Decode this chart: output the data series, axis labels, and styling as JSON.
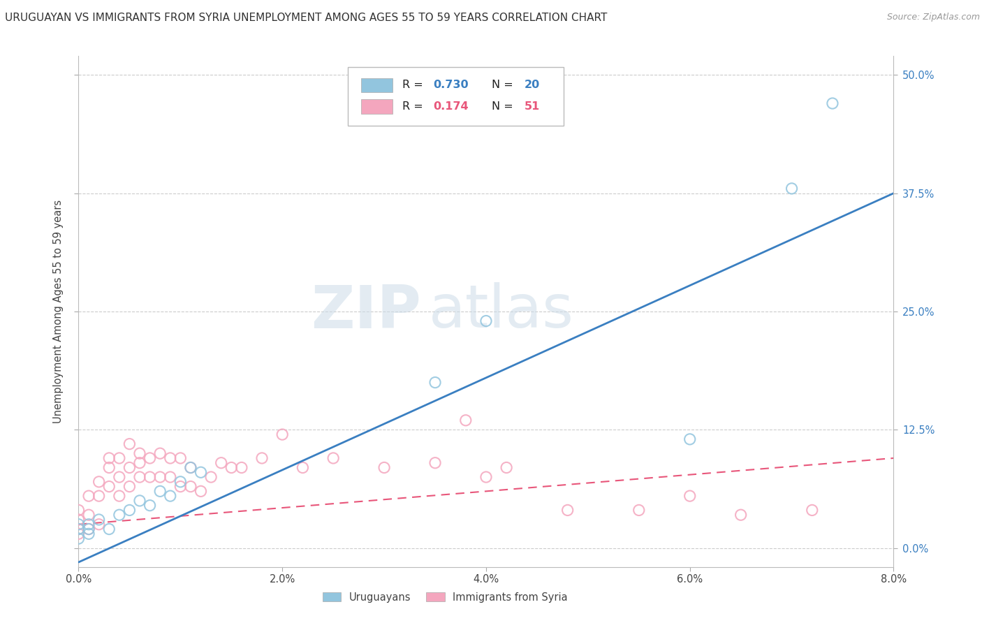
{
  "title": "URUGUAYAN VS IMMIGRANTS FROM SYRIA UNEMPLOYMENT AMONG AGES 55 TO 59 YEARS CORRELATION CHART",
  "source": "Source: ZipAtlas.com",
  "ylabel": "Unemployment Among Ages 55 to 59 years",
  "xlim": [
    0.0,
    0.08
  ],
  "ylim": [
    -0.02,
    0.52
  ],
  "ylim_display": [
    0.0,
    0.5
  ],
  "xticks": [
    0.0,
    0.02,
    0.04,
    0.06,
    0.08
  ],
  "xtick_labels": [
    "0.0%",
    "2.0%",
    "4.0%",
    "6.0%",
    "8.0%"
  ],
  "yticks_right": [
    0.0,
    0.125,
    0.25,
    0.375,
    0.5
  ],
  "ytick_labels_right": [
    "0.0%",
    "12.5%",
    "25.0%",
    "37.5%",
    "50.0%"
  ],
  "blue_color": "#92c5de",
  "pink_color": "#f4a6be",
  "blue_line_color": "#3a7fc1",
  "pink_line_color": "#e8567a",
  "watermark_zip": "ZIP",
  "watermark_atlas": "atlas",
  "blue_scatter_x": [
    0.0,
    0.0,
    0.0,
    0.001,
    0.001,
    0.001,
    0.002,
    0.003,
    0.004,
    0.005,
    0.006,
    0.007,
    0.008,
    0.009,
    0.01,
    0.011,
    0.012,
    0.035,
    0.04,
    0.06,
    0.07,
    0.074
  ],
  "blue_scatter_y": [
    0.01,
    0.02,
    0.025,
    0.015,
    0.02,
    0.025,
    0.03,
    0.02,
    0.035,
    0.04,
    0.05,
    0.045,
    0.06,
    0.055,
    0.07,
    0.085,
    0.08,
    0.175,
    0.24,
    0.115,
    0.38,
    0.47
  ],
  "pink_scatter_x": [
    0.0,
    0.0,
    0.0,
    0.0,
    0.001,
    0.001,
    0.001,
    0.002,
    0.002,
    0.002,
    0.003,
    0.003,
    0.003,
    0.004,
    0.004,
    0.004,
    0.005,
    0.005,
    0.005,
    0.006,
    0.006,
    0.006,
    0.007,
    0.007,
    0.008,
    0.008,
    0.009,
    0.009,
    0.01,
    0.01,
    0.011,
    0.011,
    0.012,
    0.013,
    0.014,
    0.015,
    0.016,
    0.018,
    0.02,
    0.022,
    0.025,
    0.03,
    0.035,
    0.038,
    0.04,
    0.042,
    0.048,
    0.055,
    0.06,
    0.065,
    0.072
  ],
  "pink_scatter_y": [
    0.015,
    0.02,
    0.03,
    0.04,
    0.02,
    0.035,
    0.055,
    0.025,
    0.055,
    0.07,
    0.065,
    0.085,
    0.095,
    0.055,
    0.075,
    0.095,
    0.065,
    0.085,
    0.11,
    0.075,
    0.09,
    0.1,
    0.075,
    0.095,
    0.075,
    0.1,
    0.075,
    0.095,
    0.065,
    0.095,
    0.065,
    0.085,
    0.06,
    0.075,
    0.09,
    0.085,
    0.085,
    0.095,
    0.12,
    0.085,
    0.095,
    0.085,
    0.09,
    0.135,
    0.075,
    0.085,
    0.04,
    0.04,
    0.055,
    0.035,
    0.04
  ],
  "blue_line_x0": 0.0,
  "blue_line_y0": -0.015,
  "blue_line_x1": 0.08,
  "blue_line_y1": 0.375,
  "pink_line_x0": 0.0,
  "pink_line_y0": 0.025,
  "pink_line_x1": 0.08,
  "pink_line_y1": 0.095
}
